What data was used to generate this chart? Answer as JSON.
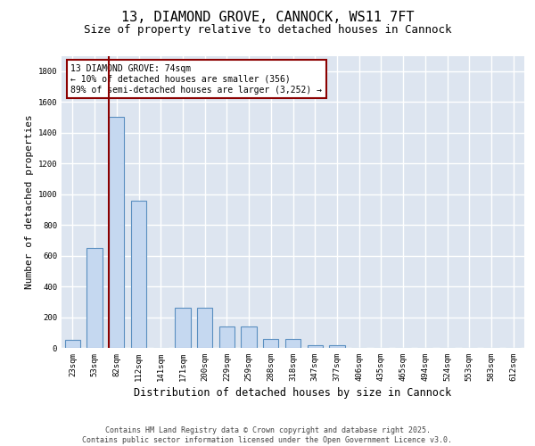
{
  "title_line1": "13, DIAMOND GROVE, CANNOCK, WS11 7FT",
  "title_line2": "Size of property relative to detached houses in Cannock",
  "xlabel": "Distribution of detached houses by size in Cannock",
  "ylabel": "Number of detached properties",
  "categories": [
    "23sqm",
    "53sqm",
    "82sqm",
    "112sqm",
    "141sqm",
    "171sqm",
    "200sqm",
    "229sqm",
    "259sqm",
    "288sqm",
    "318sqm",
    "347sqm",
    "377sqm",
    "406sqm",
    "435sqm",
    "465sqm",
    "494sqm",
    "524sqm",
    "553sqm",
    "583sqm",
    "612sqm"
  ],
  "values": [
    50,
    650,
    1500,
    960,
    0,
    260,
    260,
    140,
    140,
    60,
    60,
    20,
    20,
    0,
    0,
    0,
    0,
    0,
    0,
    0,
    0
  ],
  "bar_color": "#c5d8f0",
  "bar_edge_color": "#5a8fc0",
  "vline_color": "#8b0000",
  "annotation_text": "13 DIAMOND GROVE: 74sqm\n← 10% of detached houses are smaller (356)\n89% of semi-detached houses are larger (3,252) →",
  "annotation_box_edgecolor": "#8b0000",
  "ylim": [
    0,
    1900
  ],
  "yticks": [
    0,
    200,
    400,
    600,
    800,
    1000,
    1200,
    1400,
    1600,
    1800
  ],
  "background_color": "#dde5f0",
  "grid_color": "white",
  "footer_line1": "Contains HM Land Registry data © Crown copyright and database right 2025.",
  "footer_line2": "Contains public sector information licensed under the Open Government Licence v3.0.",
  "title_fontsize": 11,
  "subtitle_fontsize": 9,
  "tick_fontsize": 6.5,
  "xlabel_fontsize": 8.5,
  "ylabel_fontsize": 8,
  "annotation_fontsize": 7,
  "footer_fontsize": 6
}
